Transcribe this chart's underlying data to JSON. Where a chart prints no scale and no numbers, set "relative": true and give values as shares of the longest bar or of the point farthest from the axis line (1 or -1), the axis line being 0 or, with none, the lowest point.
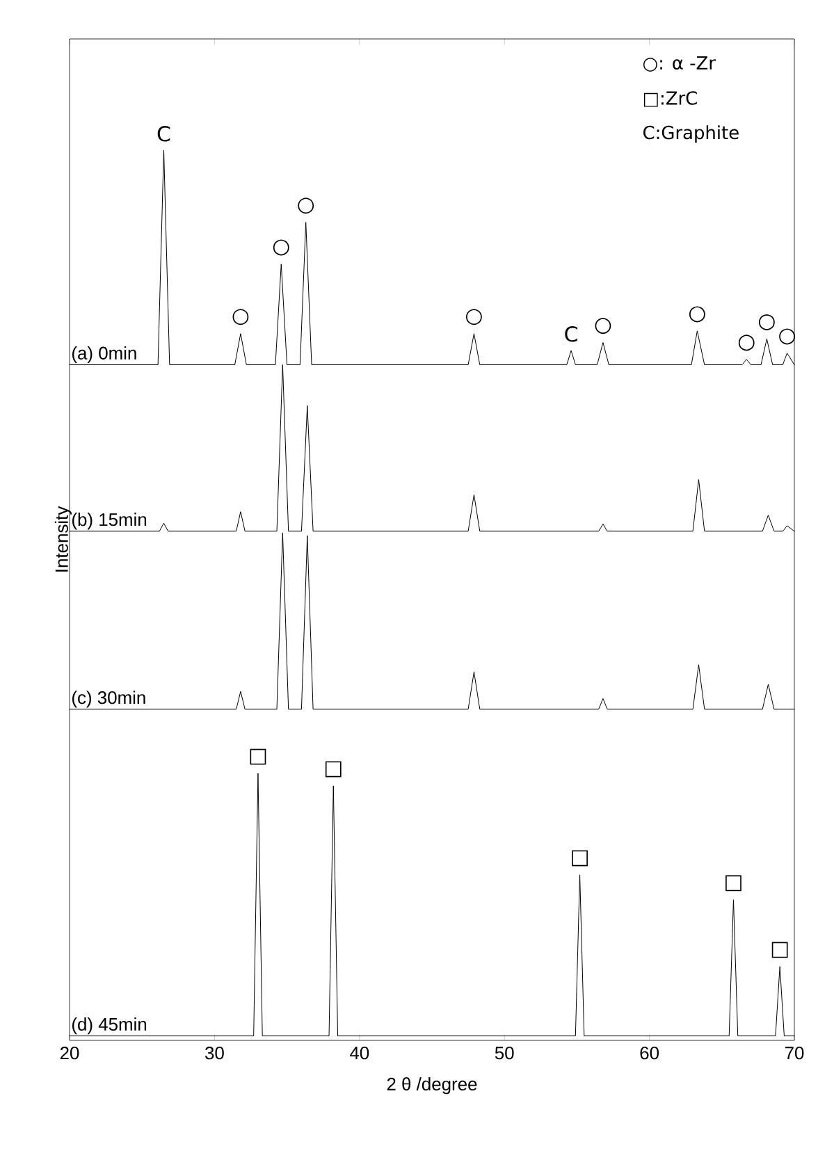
{
  "chart_data": {
    "type": "line",
    "relative": true,
    "xlabel": "2 θ /degree",
    "ylabel": "Intensity",
    "xlim": [
      20,
      70
    ],
    "xticks": [
      20,
      30,
      40,
      50,
      60,
      70
    ],
    "marker": "none",
    "line_style": "solid",
    "grid": false,
    "series": [
      {
        "name": "(a)  0min",
        "color": "#000000",
        "x": [
          20,
          26.1,
          26.5,
          26.9,
          31.4,
          31.8,
          32.2,
          34.2,
          34.6,
          35.0,
          35.9,
          36.3,
          36.7,
          47.5,
          47.9,
          48.3,
          54.3,
          54.6,
          54.9,
          56.4,
          56.8,
          57.2,
          62.9,
          63.3,
          63.8,
          66.4,
          66.7,
          67.0,
          67.7,
          68.1,
          68.5,
          69.2,
          69.5,
          70
        ],
        "values": [
          0.759,
          0.759,
          1.0,
          0.759,
          0.759,
          0.794,
          0.759,
          0.759,
          0.872,
          0.759,
          0.759,
          0.919,
          0.759,
          0.759,
          0.794,
          0.759,
          0.759,
          0.775,
          0.759,
          0.759,
          0.784,
          0.759,
          0.759,
          0.797,
          0.759,
          0.759,
          0.765,
          0.759,
          0.759,
          0.788,
          0.759,
          0.759,
          0.772,
          0.759
        ]
      },
      {
        "name": "(b) 15min",
        "color": "#000000",
        "x": [
          20,
          26.2,
          26.5,
          26.8,
          31.5,
          31.8,
          32.1,
          34.3,
          34.7,
          35.1,
          36.0,
          36.4,
          36.8,
          47.5,
          47.9,
          48.3,
          56.5,
          56.8,
          57.1,
          63.0,
          63.4,
          63.8,
          67.8,
          68.2,
          68.6,
          69.2,
          69.5,
          70
        ],
        "values": [
          0.572,
          0.572,
          0.581,
          0.572,
          0.572,
          0.594,
          0.572,
          0.572,
          0.759,
          0.572,
          0.572,
          0.713,
          0.572,
          0.572,
          0.613,
          0.572,
          0.572,
          0.58,
          0.572,
          0.572,
          0.63,
          0.572,
          0.572,
          0.59,
          0.572,
          0.572,
          0.578,
          0.572
        ]
      },
      {
        "name": "(c) 30min",
        "color": "#000000",
        "x": [
          20,
          31.5,
          31.8,
          32.1,
          34.3,
          34.7,
          35.1,
          36.0,
          36.4,
          36.8,
          47.5,
          47.9,
          48.3,
          56.5,
          56.8,
          57.1,
          63.0,
          63.4,
          63.8,
          67.8,
          68.2,
          68.6,
          70
        ],
        "values": [
          0.372,
          0.372,
          0.392,
          0.372,
          0.372,
          0.57,
          0.372,
          0.372,
          0.567,
          0.372,
          0.372,
          0.414,
          0.372,
          0.372,
          0.384,
          0.372,
          0.372,
          0.422,
          0.372,
          0.372,
          0.4,
          0.372,
          0.372
        ]
      },
      {
        "name": "(d) 45min",
        "color": "#000000",
        "x": [
          20,
          32.7,
          33.0,
          33.3,
          37.9,
          38.2,
          38.5,
          54.9,
          55.2,
          55.5,
          65.5,
          65.8,
          66.1,
          68.7,
          69.0,
          69.3,
          70
        ],
        "values": [
          0.005,
          0.005,
          0.3,
          0.005,
          0.005,
          0.286,
          0.005,
          0.005,
          0.186,
          0.005,
          0.005,
          0.158,
          0.005,
          0.005,
          0.083,
          0.005,
          0.005
        ]
      }
    ],
    "annotations": [
      "○: α -Zr",
      "□:ZrC",
      "C:Graphite",
      {
        "text": "C",
        "x": 26.5,
        "y": 1.0
      },
      {
        "text": "C",
        "x": 54.6,
        "y": 0.775
      },
      {
        "text": "○",
        "x": 31.8,
        "y": 0.794
      },
      {
        "text": "○",
        "x": 34.6,
        "y": 0.872
      },
      {
        "text": "○",
        "x": 36.3,
        "y": 0.919
      },
      {
        "text": "○",
        "x": 47.9,
        "y": 0.794
      },
      {
        "text": "○",
        "x": 56.8,
        "y": 0.784
      },
      {
        "text": "○",
        "x": 63.3,
        "y": 0.797
      },
      {
        "text": "○",
        "x": 68.1,
        "y": 0.788
      },
      {
        "text": "○",
        "x": 66.7,
        "y": 0.765
      },
      {
        "text": "○",
        "x": 69.5,
        "y": 0.772
      },
      {
        "text": "□",
        "x": 33.0,
        "y": 0.3
      },
      {
        "text": "□",
        "x": 38.2,
        "y": 0.286
      },
      {
        "text": "□",
        "x": 55.2,
        "y": 0.186
      },
      {
        "text": "□",
        "x": 65.8,
        "y": 0.158
      },
      {
        "text": "□",
        "x": 69.0,
        "y": 0.083
      }
    ]
  }
}
